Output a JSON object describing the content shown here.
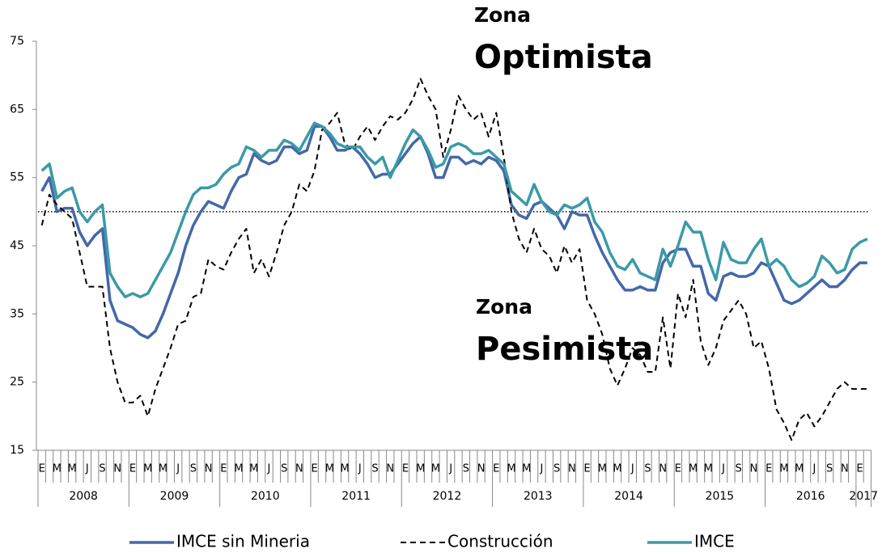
{
  "chart_data": {
    "type": "line",
    "annotations": [
      "Zona",
      "Optimista",
      "Zona",
      "Pesimista"
    ],
    "categories": [
      "E",
      null,
      "M",
      null,
      "M",
      null,
      "J",
      null,
      "S",
      null,
      "N",
      null,
      "E",
      null,
      "M",
      null,
      "M",
      null,
      "J",
      null,
      "S",
      null,
      "N",
      null,
      "E",
      null,
      "M",
      null,
      "M",
      null,
      "J",
      null,
      "S",
      null,
      "N",
      null,
      "E",
      null,
      "M",
      null,
      "M",
      null,
      "J",
      null,
      "S",
      null,
      "N",
      null,
      "E",
      null,
      "M",
      null,
      "M",
      null,
      "J",
      null,
      "S",
      null,
      "N",
      null,
      "E",
      null,
      "M",
      null,
      "M",
      null,
      "J",
      null,
      "S",
      null,
      "N",
      null,
      "E",
      null,
      "M",
      null,
      "M",
      null,
      "J",
      null,
      "S",
      null,
      "N",
      null,
      "E",
      null,
      "M",
      null,
      "M",
      null,
      "J",
      null,
      "S",
      null,
      "N",
      null,
      "E",
      null,
      "M",
      null,
      "M",
      null,
      "J",
      null,
      "S",
      null,
      "N",
      null,
      "E",
      null
    ],
    "years": [
      "2008",
      "2009",
      "2010",
      "2011",
      "2012",
      "2013",
      "2014",
      "2015",
      "2016",
      "2017"
    ],
    "reference_line": 50,
    "ylim": [
      15,
      75
    ],
    "yticks": [
      15,
      25,
      35,
      45,
      55,
      65,
      75
    ],
    "series": [
      {
        "name": "IMCE sin Mineria",
        "color": "#4468a8",
        "style": "solid",
        "values": [
          53,
          55,
          50,
          50.5,
          50.5,
          47,
          45,
          46.5,
          47.5,
          37,
          34,
          33.5,
          33,
          32,
          31.5,
          32.5,
          35,
          38,
          41,
          45,
          48,
          50,
          51.5,
          51,
          50.5,
          53,
          55,
          55.5,
          58.5,
          57.5,
          57,
          57.5,
          59.5,
          59.5,
          58.5,
          59,
          62.5,
          62.5,
          61,
          59,
          59,
          59.5,
          58.5,
          57,
          55,
          55.5,
          55.5,
          57,
          58.5,
          60,
          61,
          58.5,
          55,
          55,
          58,
          58,
          57,
          57.5,
          57,
          58,
          57.5,
          56,
          51,
          49.5,
          49,
          51,
          51.5,
          50.5,
          49.5,
          47.5,
          50,
          49.5,
          49.5,
          46.5,
          44,
          42,
          40,
          38.5,
          38.5,
          39,
          38.5,
          38.5,
          42.5,
          44,
          44.5,
          44.5,
          42,
          42,
          38,
          37,
          40.5,
          41,
          40.5,
          40.5,
          41,
          42.5,
          42,
          39.5,
          37,
          36.5,
          37,
          38,
          39,
          40,
          39,
          39,
          40,
          41.5,
          42.5,
          42.5
        ]
      },
      {
        "name": "Construcción",
        "color": "#000000",
        "style": "dashed",
        "values": [
          48,
          52.5,
          51,
          50,
          49,
          44,
          39,
          39,
          39,
          30,
          25,
          22,
          22,
          23,
          20,
          24,
          27,
          30,
          33.5,
          34,
          37.5,
          38,
          43,
          42,
          41.5,
          44,
          46,
          47.5,
          41,
          43,
          40.5,
          44,
          48,
          50,
          54,
          53,
          56,
          62,
          63,
          64.5,
          60,
          59,
          61,
          62.5,
          60.5,
          62.5,
          64,
          63.5,
          64.5,
          66.5,
          69.5,
          67,
          65,
          58,
          62,
          67,
          65,
          63.5,
          64.5,
          61,
          64.5,
          58,
          50,
          46,
          44,
          47.5,
          44.5,
          43.5,
          41,
          45,
          42.5,
          44.5,
          37,
          35,
          32,
          27,
          24.5,
          27,
          30,
          29,
          26.5,
          26.5,
          34.5,
          27,
          38,
          34.5,
          40,
          31,
          27.5,
          30,
          34,
          35.5,
          37,
          35,
          30,
          31,
          27,
          21,
          19,
          16.5,
          19.5,
          20.5,
          18.5,
          20,
          22,
          24,
          25,
          24,
          24,
          24
        ]
      },
      {
        "name": "IMCE",
        "color": "#3b9aa8",
        "style": "solid",
        "values": [
          56,
          57,
          52,
          53,
          53.5,
          50,
          48.5,
          50,
          51,
          41,
          39,
          37.5,
          38,
          37.5,
          38,
          40,
          42,
          44,
          47,
          50,
          52.5,
          53.5,
          53.5,
          54,
          55.5,
          56.5,
          57,
          59.5,
          59,
          58,
          59,
          59,
          60.5,
          60,
          59,
          61,
          63,
          62.5,
          61.5,
          60,
          59.5,
          59.5,
          59.5,
          58,
          57,
          58,
          55,
          57.5,
          60,
          62,
          61,
          59,
          56.5,
          57,
          59.5,
          60,
          59.5,
          58.5,
          58.5,
          59,
          58,
          57,
          53,
          52,
          51,
          54,
          51.5,
          50,
          49.5,
          51,
          50.5,
          51,
          52,
          48.5,
          47,
          44,
          42,
          41.5,
          43,
          41,
          40.5,
          40,
          44.5,
          42,
          45,
          48.5,
          47,
          47,
          43,
          40,
          45.5,
          43,
          42.5,
          42.5,
          44.5,
          46,
          42,
          43,
          42,
          40,
          39,
          39.5,
          40.5,
          43.5,
          42.5,
          41,
          41.5,
          44.5,
          45.5,
          46
        ]
      }
    ]
  }
}
